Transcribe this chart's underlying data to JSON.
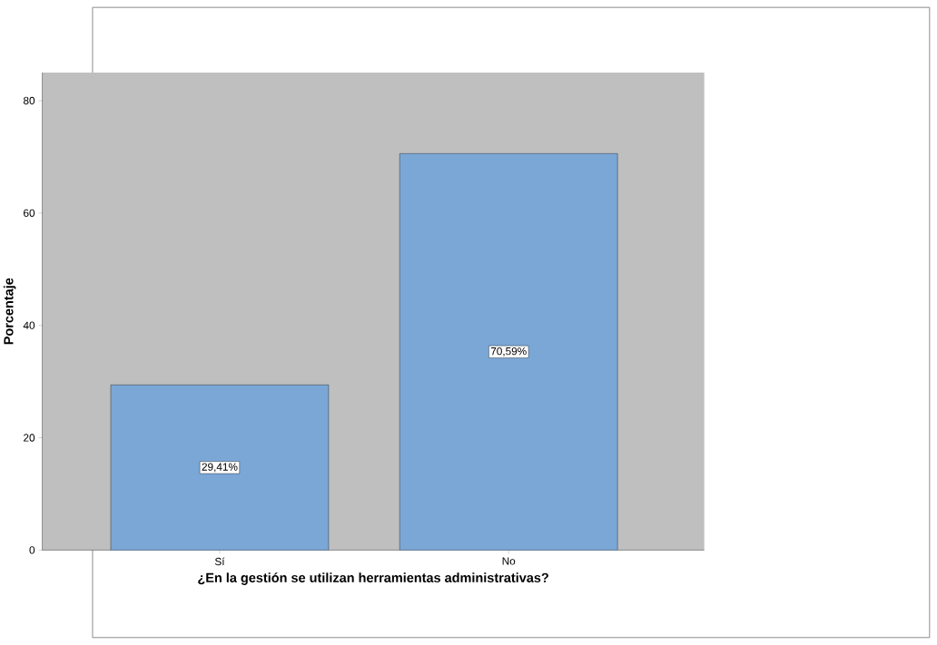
{
  "chart_data": {
    "type": "bar",
    "xlabel": "¿En la gestión se utilizan herramientas administrativas?",
    "ylabel": "Porcentaje",
    "categories": [
      "Sí",
      "No"
    ],
    "values": [
      29.41,
      70.59
    ],
    "value_labels": [
      "29,41%",
      "70,59%"
    ],
    "color": "#7ba7d6",
    "ylim": [
      0,
      85
    ],
    "yticks": [
      0,
      20,
      40,
      60,
      80
    ]
  }
}
